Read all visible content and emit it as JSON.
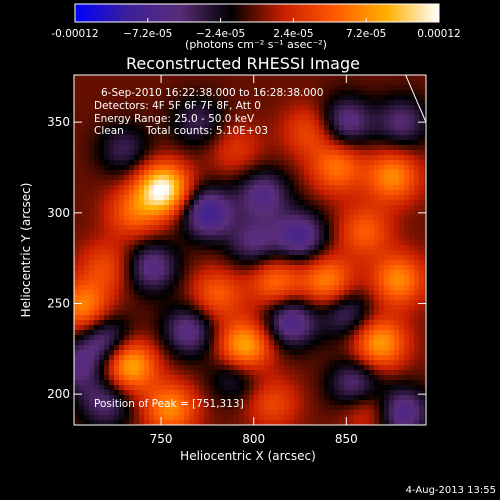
{
  "colorbar": {
    "tick_labels": [
      "-0.00012",
      "−7.2e-05",
      "−2.4e-05",
      "2.4e-05",
      "7.2e-05",
      "0.00012"
    ],
    "unit_label": "(photons cm⁻² s⁻¹ asec⁻²)",
    "colors": [
      "#0000ff",
      "#3b1f9a",
      "#5a2d7a",
      "#000000",
      "#c81e00",
      "#ff5a00",
      "#ffb000",
      "#ffffff"
    ]
  },
  "chart_data": {
    "type": "heatmap",
    "title": "Reconstructed RHESSI Image",
    "xlabel": "Heliocentric X (arcsec)",
    "ylabel": "Heliocentric Y (arcsec)",
    "xlim": [
      703,
      893
    ],
    "ylim": [
      183,
      376
    ],
    "x_ticks": [
      750,
      800,
      850
    ],
    "y_ticks": [
      200,
      250,
      300,
      350
    ],
    "value_range": [
      -0.00012,
      0.00012
    ],
    "blobs": [
      {
        "x": 751,
        "y": 313,
        "v": 0.00012
      },
      {
        "x": 733,
        "y": 216,
        "v": 9e-05
      },
      {
        "x": 795,
        "y": 226,
        "v": 9e-05
      },
      {
        "x": 755,
        "y": 192,
        "v": 7e-05
      },
      {
        "x": 868,
        "y": 228,
        "v": 8e-05
      },
      {
        "x": 878,
        "y": 263,
        "v": 7e-05
      },
      {
        "x": 840,
        "y": 262,
        "v": 7e-05
      },
      {
        "x": 875,
        "y": 320,
        "v": 7e-05
      },
      {
        "x": 845,
        "y": 325,
        "v": 6e-05
      },
      {
        "x": 780,
        "y": 255,
        "v": 5e-05
      },
      {
        "x": 812,
        "y": 262,
        "v": 6e-05
      },
      {
        "x": 708,
        "y": 248,
        "v": 7e-05
      },
      {
        "x": 862,
        "y": 192,
        "v": 4e-05
      },
      {
        "x": 735,
        "y": 300,
        "v": 5e-05
      },
      {
        "x": 810,
        "y": 195,
        "v": 4e-05
      },
      {
        "x": 860,
        "y": 290,
        "v": 5e-05
      },
      {
        "x": 720,
        "y": 270,
        "v": 4e-05
      },
      {
        "x": 790,
        "y": 335,
        "v": 3e-05
      },
      {
        "x": 830,
        "y": 345,
        "v": 4e-05
      },
      {
        "x": 775,
        "y": 300,
        "v": -8e-05
      },
      {
        "x": 805,
        "y": 310,
        "v": -6e-05
      },
      {
        "x": 820,
        "y": 240,
        "v": -7e-05
      },
      {
        "x": 855,
        "y": 205,
        "v": -6e-05
      },
      {
        "x": 745,
        "y": 270,
        "v": -6e-05
      },
      {
        "x": 825,
        "y": 287,
        "v": -7e-05
      },
      {
        "x": 720,
        "y": 230,
        "v": -6e-05
      },
      {
        "x": 765,
        "y": 235,
        "v": -6e-05
      },
      {
        "x": 720,
        "y": 195,
        "v": -5e-05
      },
      {
        "x": 800,
        "y": 283,
        "v": -5e-05
      },
      {
        "x": 880,
        "y": 190,
        "v": -7e-05
      },
      {
        "x": 850,
        "y": 350,
        "v": -6e-05
      },
      {
        "x": 705,
        "y": 215,
        "v": -5e-05
      },
      {
        "x": 770,
        "y": 350,
        "v": -4e-05
      },
      {
        "x": 730,
        "y": 335,
        "v": -4e-05
      },
      {
        "x": 880,
        "y": 350,
        "v": -5e-05
      },
      {
        "x": 850,
        "y": 245,
        "v": -5e-05
      },
      {
        "x": 790,
        "y": 210,
        "v": -4e-05
      }
    ],
    "limb_line": [
      [
        882,
        376
      ],
      [
        893,
        350
      ]
    ]
  },
  "annotations": {
    "time_range": "6-Sep-2010 16:22:38.000 to 16:28:38.000",
    "detectors": "Detectors: 4F 5F 6F 7F 8F, Att 0",
    "energy_range": "Energy Range: 25.0 - 50.0 keV",
    "method": "Clean",
    "total_counts": "Total counts: 5.10E+03",
    "peak_position": "Position of Peak = [751,313]"
  },
  "footer_date": "4-Aug-2013 13:55"
}
